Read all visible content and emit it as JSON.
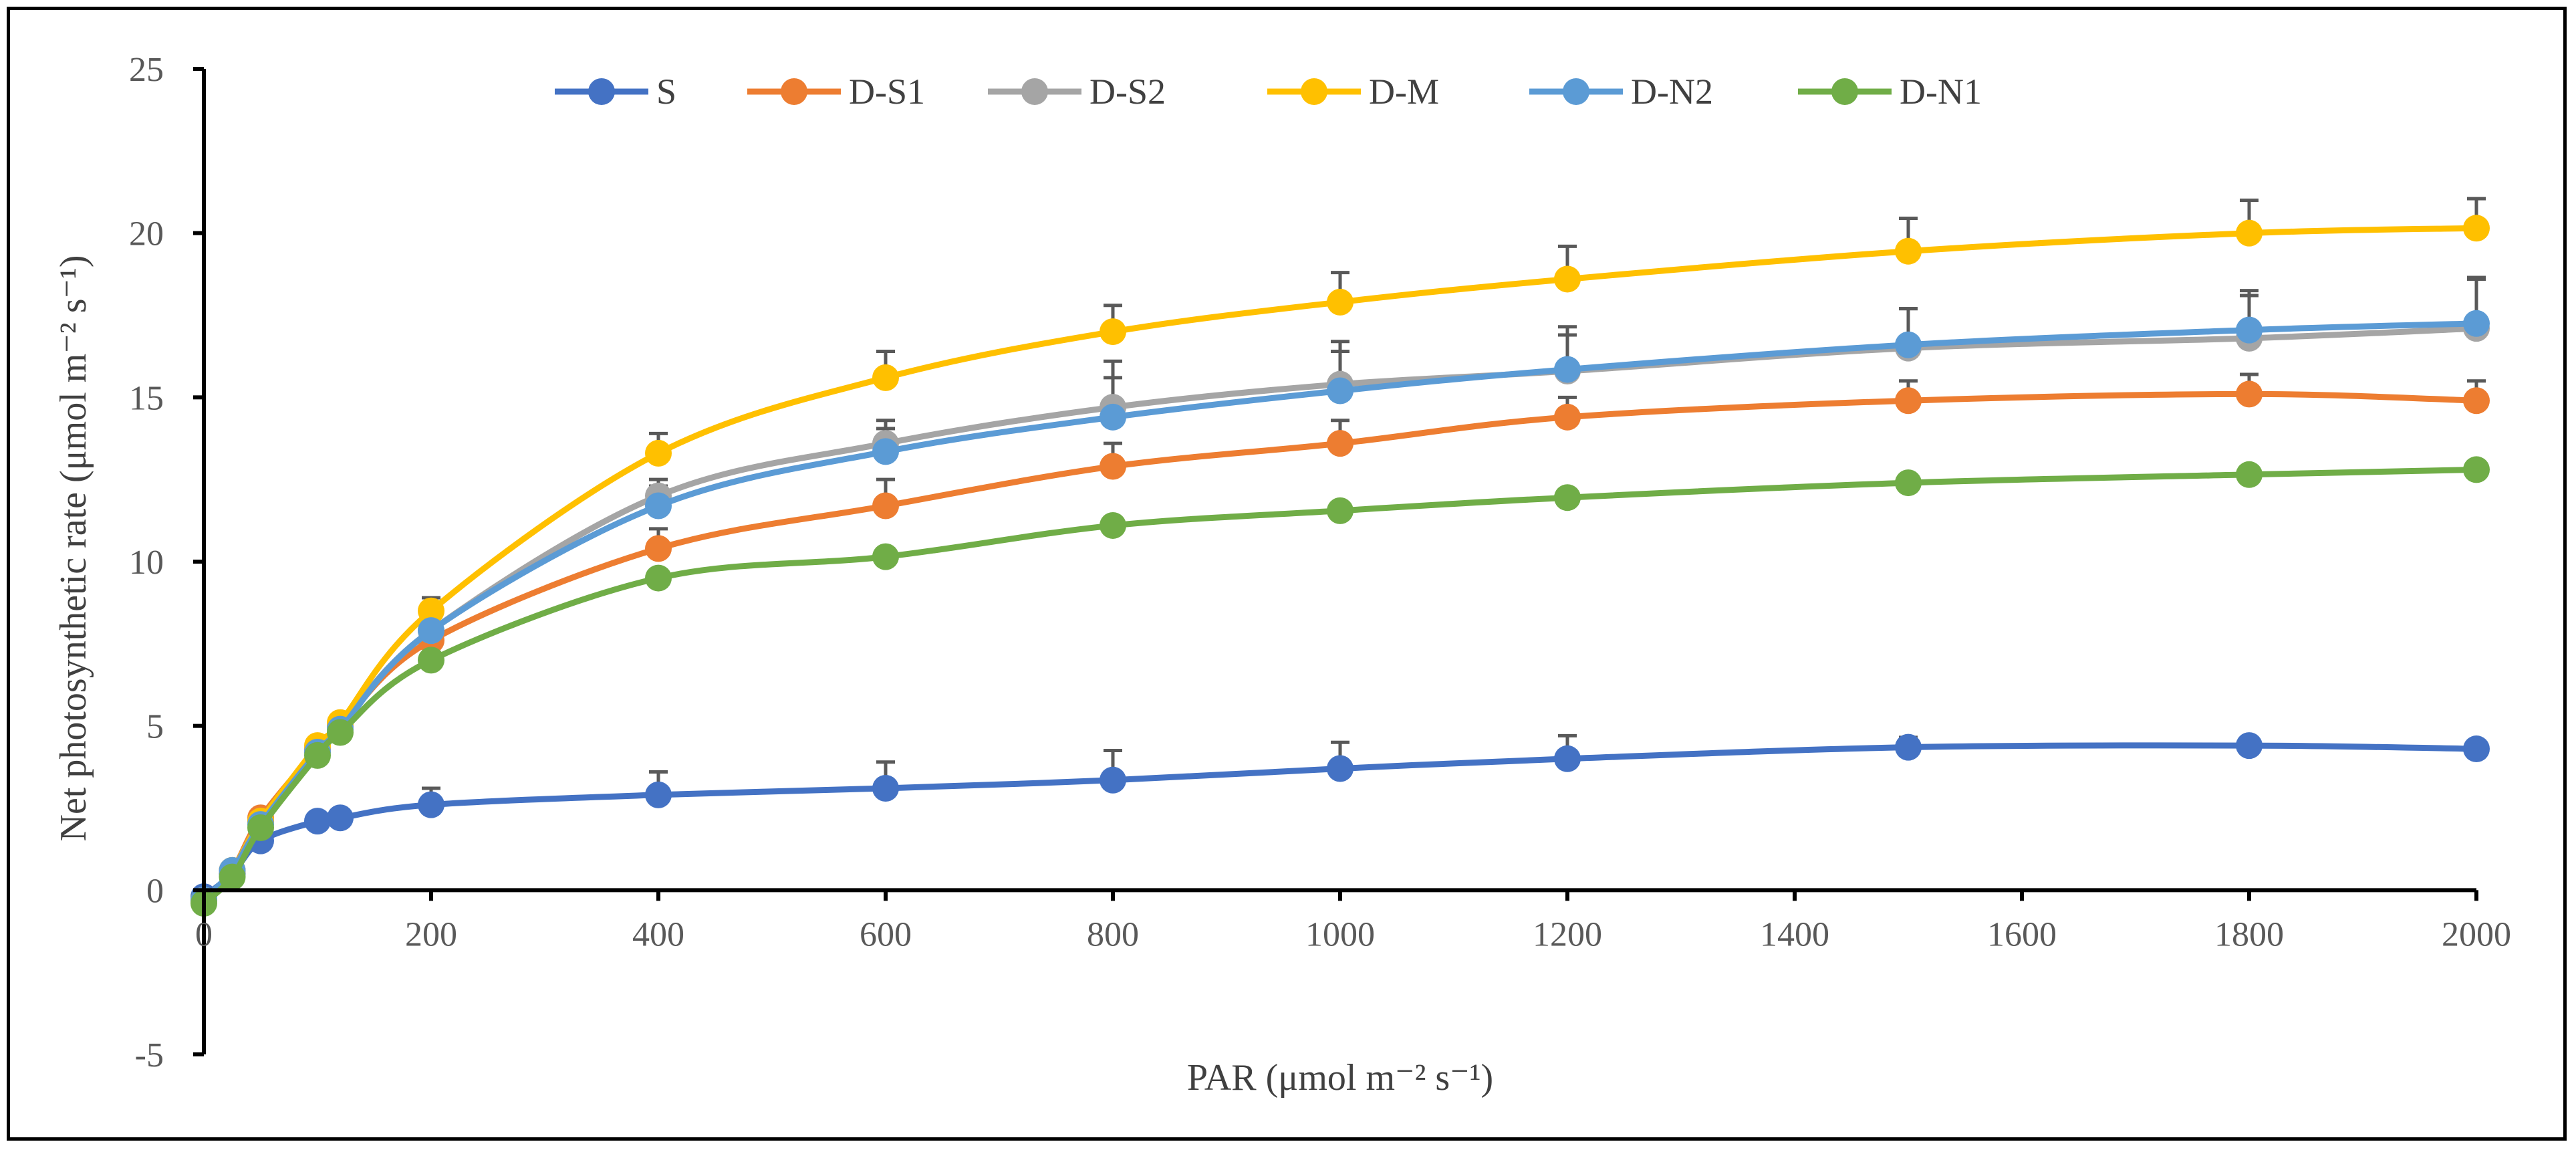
{
  "chart_data": {
    "type": "line",
    "title": "",
    "xlabel": "PAR (μmol m⁻² s⁻¹)",
    "ylabel": "Net photosynthetic rate (μmol m⁻² s⁻¹)",
    "xlim": [
      0,
      2000
    ],
    "ylim": [
      -5,
      25
    ],
    "x_ticks": [
      0,
      200,
      400,
      600,
      800,
      1000,
      1200,
      1400,
      1600,
      1800,
      2000
    ],
    "y_ticks": [
      -5,
      0,
      5,
      10,
      15,
      20,
      25
    ],
    "x_tick_labels": [
      "0",
      "200",
      "400",
      "600",
      "800",
      "1000",
      "1200",
      "1400",
      "1600",
      "1800",
      "2000"
    ],
    "y_tick_labels": [
      "-5",
      "0",
      "5",
      "10",
      "15",
      "20",
      "25"
    ],
    "grid": false,
    "legend_position": "top",
    "x": [
      0,
      25,
      50,
      100,
      120,
      200,
      400,
      600,
      800,
      1000,
      1200,
      1500,
      1800,
      2000
    ],
    "series": [
      {
        "name": "S",
        "color": "#4472C4",
        "values": [
          -0.2,
          0.5,
          1.5,
          2.1,
          2.2,
          2.6,
          2.9,
          3.1,
          3.35,
          3.7,
          4.0,
          4.35,
          4.4,
          4.3
        ],
        "errors": [
          0,
          0,
          0,
          0.2,
          0.2,
          0.5,
          0.7,
          0.8,
          0.9,
          0.8,
          0.7,
          0.3,
          0.2,
          0.1
        ]
      },
      {
        "name": "D-S1",
        "color": "#ED7D31",
        "values": [
          -0.3,
          0.6,
          2.2,
          4.3,
          5.0,
          7.6,
          10.4,
          11.7,
          12.9,
          13.6,
          14.4,
          14.9,
          15.1,
          14.9
        ],
        "errors": [
          0,
          0,
          0,
          0.2,
          0.2,
          0.4,
          0.6,
          0.8,
          0.7,
          0.7,
          0.6,
          0.6,
          0.6,
          0.6
        ]
      },
      {
        "name": "D-S2",
        "color": "#A5A5A5",
        "values": [
          -0.3,
          0.6,
          2.1,
          4.3,
          5.0,
          7.9,
          12.0,
          13.6,
          14.7,
          15.4,
          15.8,
          16.5,
          16.8,
          17.1
        ],
        "errors": [
          0,
          0,
          0,
          0.2,
          0.2,
          0.4,
          0.5,
          0.7,
          1.4,
          1.3,
          1.1,
          1.2,
          1.3,
          1.5
        ]
      },
      {
        "name": "D-M",
        "color": "#FFC000",
        "values": [
          -0.3,
          0.6,
          2.1,
          4.4,
          5.1,
          8.5,
          13.3,
          15.6,
          17.0,
          17.9,
          18.6,
          19.45,
          20.0,
          20.15
        ],
        "errors": [
          0,
          0,
          0,
          0.2,
          0.2,
          0.4,
          0.6,
          0.8,
          0.8,
          0.9,
          1.0,
          1.0,
          1.0,
          0.9
        ]
      },
      {
        "name": "D-N2",
        "color": "#5B9BD5",
        "values": [
          -0.3,
          0.6,
          2.0,
          4.2,
          4.9,
          7.9,
          11.7,
          13.35,
          14.4,
          15.2,
          15.85,
          16.6,
          17.05,
          17.25
        ],
        "errors": [
          0,
          0,
          0,
          0.2,
          0.2,
          0.4,
          0.6,
          0.7,
          1.2,
          1.2,
          1.3,
          1.1,
          1.2,
          1.4
        ]
      },
      {
        "name": "D-N1",
        "color": "#70AD47",
        "values": [
          -0.4,
          0.4,
          1.9,
          4.1,
          4.8,
          7.0,
          9.5,
          10.15,
          11.1,
          11.55,
          11.95,
          12.4,
          12.65,
          12.8
        ],
        "errors": [
          0,
          0,
          0,
          0,
          0,
          0,
          0,
          0,
          0,
          0,
          0,
          0,
          0,
          0
        ]
      }
    ]
  }
}
